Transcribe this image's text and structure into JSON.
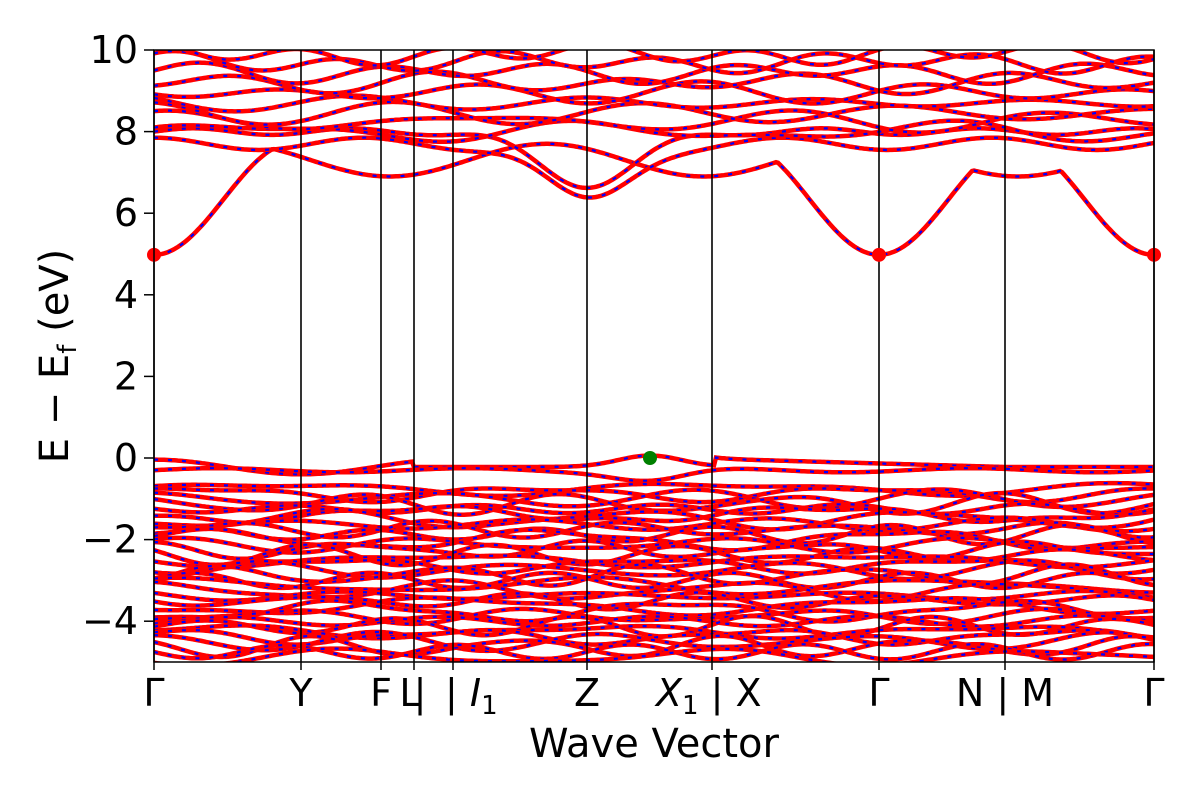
{
  "chart_data": {
    "type": "line",
    "title": "",
    "xlabel": "Wave Vector",
    "ylabel_parts": {
      "main": "E − E",
      "sub": "f",
      "unit": " (eV)"
    },
    "ylim": [
      -5,
      10
    ],
    "yticks": [
      10,
      8,
      6,
      4,
      2,
      0,
      -2,
      -4
    ],
    "ytick_labels": [
      "10",
      "8",
      "6",
      "4",
      "2",
      "0",
      "−2",
      "−4"
    ],
    "kpoint_positions": [
      0,
      0.147,
      0.227,
      0.26,
      0.299,
      0.433,
      0.558,
      0.725,
      0.851,
      1.0
    ],
    "kpoint_labels": [
      {
        "pos": 0.0,
        "text": "Γ"
      },
      {
        "pos": 0.147,
        "text": "Y"
      },
      {
        "pos": 0.227,
        "text": "F"
      },
      {
        "pos": 0.26,
        "text": "L"
      },
      {
        "pos": 0.26,
        "text": "|"
      },
      {
        "pos": 0.299,
        "text": "I₁",
        "base": "I",
        "sub": "1",
        "prefix": "| "
      },
      {
        "pos": 0.433,
        "text": "Z"
      },
      {
        "pos": 0.558,
        "text": "X₁ | X",
        "base": "X",
        "sub": "1",
        "suffix": " | X"
      },
      {
        "pos": 0.725,
        "text": "Γ"
      },
      {
        "pos": 0.851,
        "text": "N | M"
      },
      {
        "pos": 1.0,
        "text": "Γ"
      }
    ],
    "series_colors": {
      "band_solid": "#ff0000",
      "band_dash": "#0000ff"
    },
    "cbm": {
      "energy": 4.98,
      "kpoints": [
        0.0,
        0.725,
        1.0
      ],
      "color": "#ff0000"
    },
    "vbm": {
      "energy": 0.0,
      "kpoint": 0.496,
      "color": "#008000"
    },
    "grid": false,
    "legend": "none"
  }
}
